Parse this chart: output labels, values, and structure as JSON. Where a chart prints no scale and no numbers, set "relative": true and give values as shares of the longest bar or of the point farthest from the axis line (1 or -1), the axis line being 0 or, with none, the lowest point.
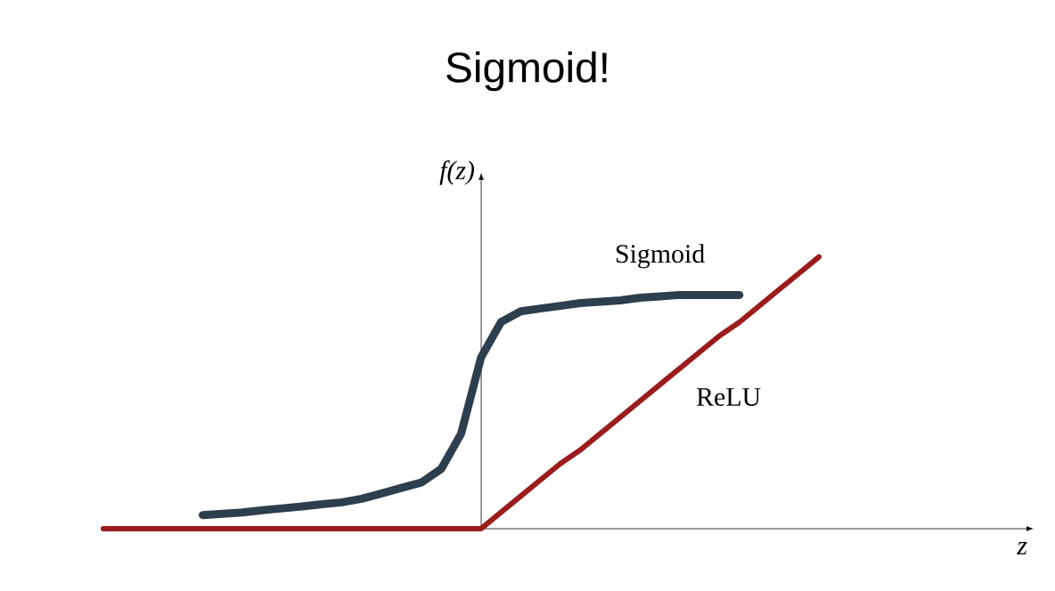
{
  "chart_data": {
    "type": "line",
    "title": "Sigmoid!",
    "annotations": [
      "z"
    ],
    "ylabel": "f(z)",
    "relative": true,
    "tick_labels": false,
    "categories": [
      null,
      null,
      null,
      null,
      null,
      null,
      null,
      null,
      null,
      null,
      null,
      null,
      null,
      null,
      null,
      null,
      null,
      null,
      null,
      null,
      null,
      null,
      null,
      null,
      null,
      null,
      null,
      null,
      null,
      null,
      null,
      null,
      null,
      null,
      null,
      null,
      null
    ],
    "series": [
      {
        "name": "Sigmoid",
        "color": "#2d3e4e",
        "values": [
          null,
          null,
          null,
          null,
          null,
          0.05,
          0.055,
          0.06,
          0.068,
          0.075,
          0.082,
          0.09,
          0.097,
          0.11,
          0.13,
          0.15,
          0.17,
          0.22,
          0.35,
          0.63,
          0.76,
          0.8,
          0.81,
          0.82,
          0.83,
          0.835,
          0.84,
          0.85,
          0.855,
          0.86,
          0.86,
          0.86,
          0.86,
          null,
          null,
          null,
          null
        ]
      },
      {
        "name": "ReLU",
        "color": "#9b1c1c",
        "values": [
          0,
          0,
          0,
          0,
          0,
          0,
          0,
          0,
          0,
          0,
          0,
          0,
          0,
          0,
          0,
          0,
          0,
          0,
          0,
          0,
          0.06,
          0.12,
          0.18,
          0.24,
          0.29,
          0.35,
          0.41,
          0.47,
          0.53,
          0.59,
          0.65,
          0.71,
          0.76,
          0.82,
          0.88,
          0.94,
          1
        ]
      }
    ]
  }
}
